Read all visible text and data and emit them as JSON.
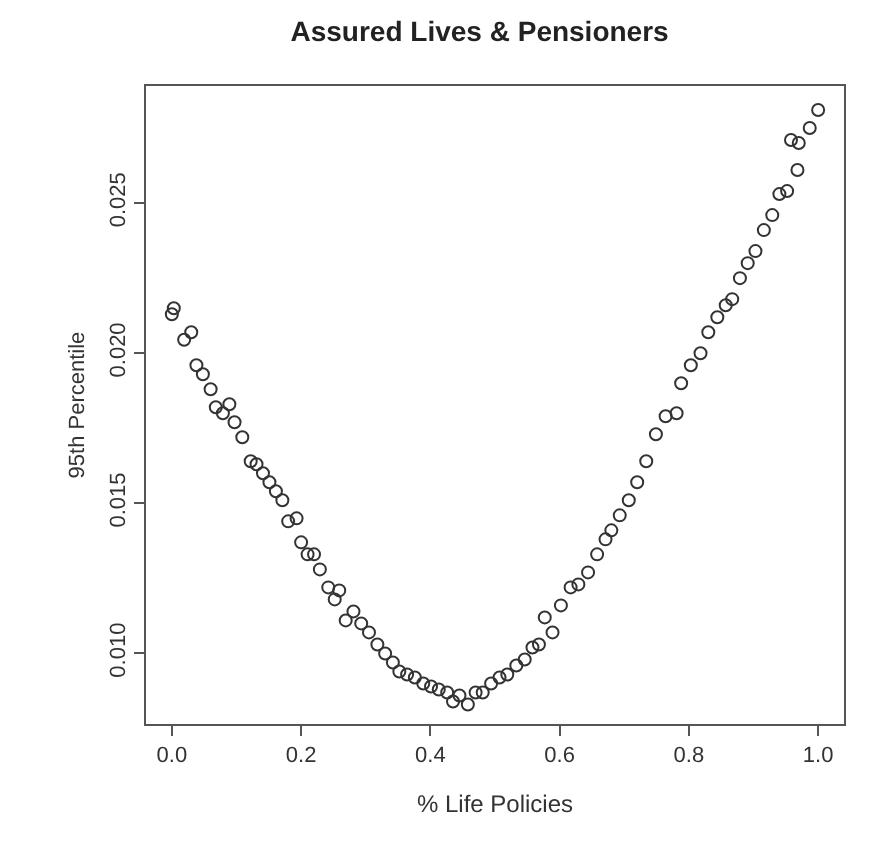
{
  "chart_data": {
    "type": "scatter",
    "title": "Assured Lives & Pensioners",
    "xlabel": "% Life Policies",
    "ylabel": "95th Percentile",
    "x": [
      0.0,
      0.003,
      0.019,
      0.03,
      0.038,
      0.048,
      0.06,
      0.068,
      0.079,
      0.089,
      0.097,
      0.109,
      0.122,
      0.131,
      0.141,
      0.151,
      0.161,
      0.171,
      0.18,
      0.193,
      0.2,
      0.21,
      0.22,
      0.229,
      0.242,
      0.252,
      0.259,
      0.269,
      0.281,
      0.293,
      0.305,
      0.318,
      0.33,
      0.342,
      0.352,
      0.364,
      0.376,
      0.389,
      0.401,
      0.413,
      0.426,
      0.435,
      0.445,
      0.458,
      0.47,
      0.481,
      0.494,
      0.507,
      0.519,
      0.533,
      0.546,
      0.558,
      0.568,
      0.577,
      0.589,
      0.602,
      0.617,
      0.629,
      0.644,
      0.658,
      0.671,
      0.68,
      0.693,
      0.707,
      0.72,
      0.734,
      0.749,
      0.764,
      0.781,
      0.788,
      0.803,
      0.818,
      0.83,
      0.844,
      0.857,
      0.867,
      0.879,
      0.891,
      0.903,
      0.916,
      0.929,
      0.94,
      0.952,
      0.958,
      0.968,
      0.97,
      0.987,
      1.0
    ],
    "values": [
      0.0213,
      0.0215,
      0.02045,
      0.0207,
      0.0196,
      0.0193,
      0.0188,
      0.0182,
      0.018,
      0.0183,
      0.0177,
      0.0172,
      0.0164,
      0.0163,
      0.016,
      0.0157,
      0.0154,
      0.0151,
      0.0144,
      0.0145,
      0.0137,
      0.0133,
      0.0133,
      0.0128,
      0.0122,
      0.0118,
      0.0121,
      0.0111,
      0.0114,
      0.011,
      0.0107,
      0.0103,
      0.01,
      0.0097,
      0.0094,
      0.0093,
      0.0092,
      0.009,
      0.0089,
      0.0088,
      0.0087,
      0.0084,
      0.0086,
      0.0083,
      0.0087,
      0.0087,
      0.009,
      0.0092,
      0.0093,
      0.0096,
      0.0098,
      0.0102,
      0.0103,
      0.0112,
      0.0107,
      0.0116,
      0.0122,
      0.0123,
      0.0127,
      0.0133,
      0.0138,
      0.0141,
      0.0146,
      0.0151,
      0.0157,
      0.0164,
      0.0173,
      0.0179,
      0.018,
      0.019,
      0.0196,
      0.02,
      0.0207,
      0.0212,
      0.0216,
      0.0218,
      0.0225,
      0.023,
      0.0234,
      0.0241,
      0.0246,
      0.0253,
      0.0254,
      0.0271,
      0.0261,
      0.027,
      0.0275,
      0.0281
    ],
    "color": "#333333",
    "marker": "circle",
    "legend": false,
    "xlim": [
      -0.04,
      1.04
    ],
    "xticks": [
      {
        "value": 0,
        "label": "0.0"
      },
      0.2,
      0.4,
      0.6,
      0.8,
      {
        "value": 1,
        "label": "1.0"
      }
    ],
    "ylim": [
      0.00765,
      0.0289
    ],
    "yticks": [
      {
        "value": 0.01,
        "label": "0.010"
      },
      0.015,
      {
        "value": 0.02,
        "label": "0.020"
      },
      0.025
    ]
  }
}
